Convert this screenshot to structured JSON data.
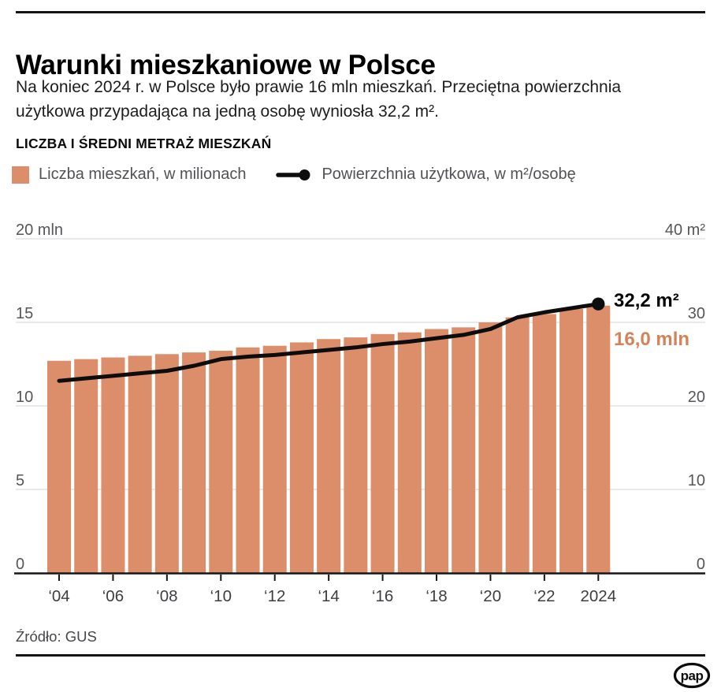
{
  "header": {
    "title": "Warunki mieszkaniowe w Polsce",
    "subtitle_lines": [
      "Na koniec 2024 r. w Polsce było prawie 16 mln mieszkań. Przeciętna powierzchnia",
      "użytkowa przypadająca na jedną osobę wyniosła 32,2 m²."
    ]
  },
  "chart": {
    "heading": "LICZBA I ŚREDNI METRAŻ MIESZKAŃ",
    "legend": [
      {
        "label": "Liczba mieszkań, w milionach",
        "marker": "square"
      },
      {
        "label": "Powierzchnia użytkowa, w m²/osobę",
        "marker": "line-dot"
      }
    ]
  },
  "chart_data": {
    "type": "bar+line",
    "title": "LICZBA I ŚREDNI METRAŻ MIESZKAŃ",
    "grid": true,
    "categories": [
      2004,
      2005,
      2006,
      2007,
      2008,
      2009,
      2010,
      2011,
      2012,
      2013,
      2014,
      2015,
      2016,
      2017,
      2018,
      2019,
      2020,
      2021,
      2022,
      2023,
      2024
    ],
    "series": [
      {
        "name": "Liczba mieszkań, w milionach",
        "type": "bar",
        "axis": "left",
        "values": [
          12.7,
          12.8,
          12.9,
          13.0,
          13.1,
          13.2,
          13.3,
          13.5,
          13.6,
          13.8,
          14.0,
          14.1,
          14.3,
          14.4,
          14.6,
          14.7,
          15.0,
          15.3,
          15.5,
          15.8,
          16.0
        ]
      },
      {
        "name": "Powierzchnia użytkowa, w m²/osobę",
        "type": "line",
        "axis": "right",
        "values": [
          23.0,
          23.3,
          23.6,
          23.9,
          24.2,
          24.8,
          25.6,
          25.9,
          26.1,
          26.4,
          26.7,
          27.0,
          27.4,
          27.7,
          28.1,
          28.5,
          29.2,
          30.6,
          31.2,
          31.7,
          32.2
        ]
      }
    ],
    "left_axis": {
      "range": [
        0,
        20
      ],
      "ticks": [
        {
          "value": 20,
          "label": "20 mln"
        },
        {
          "value": 15,
          "label": "15"
        },
        {
          "value": 10,
          "label": "10"
        },
        {
          "value": 5,
          "label": "5"
        },
        {
          "value": 0,
          "label": "0"
        }
      ]
    },
    "right_axis": {
      "range": [
        0,
        40
      ],
      "ticks": [
        {
          "value": 40,
          "label": "40 m²"
        },
        {
          "value": 30,
          "label": "30"
        },
        {
          "value": 20,
          "label": "20"
        },
        {
          "value": 10,
          "label": "10"
        },
        {
          "value": 0,
          "label": "0"
        }
      ]
    },
    "x_ticks": [
      {
        "year": 2004,
        "label": "‘04"
      },
      {
        "year": 2006,
        "label": "‘06"
      },
      {
        "year": 2008,
        "label": "‘08"
      },
      {
        "year": 2010,
        "label": "‘10"
      },
      {
        "year": 2012,
        "label": "‘12"
      },
      {
        "year": 2014,
        "label": "‘14"
      },
      {
        "year": 2016,
        "label": "‘16"
      },
      {
        "year": 2018,
        "label": "‘18"
      },
      {
        "year": 2020,
        "label": "‘20"
      },
      {
        "year": 2022,
        "label": "‘22"
      },
      {
        "year": 2024,
        "label": "2024"
      }
    ],
    "annotations": {
      "line_end": "32,2 m²",
      "bar_end": "16,0 mln"
    },
    "legend_position": "top-left"
  },
  "colors": {
    "bar": "#DC8E6B",
    "line": "#0D0D0D",
    "bar_label": "#D2835C",
    "grid": "#E2E2E2",
    "axis": "#161616"
  },
  "footer": {
    "source": "Źródło: GUS",
    "logo": "pap"
  }
}
